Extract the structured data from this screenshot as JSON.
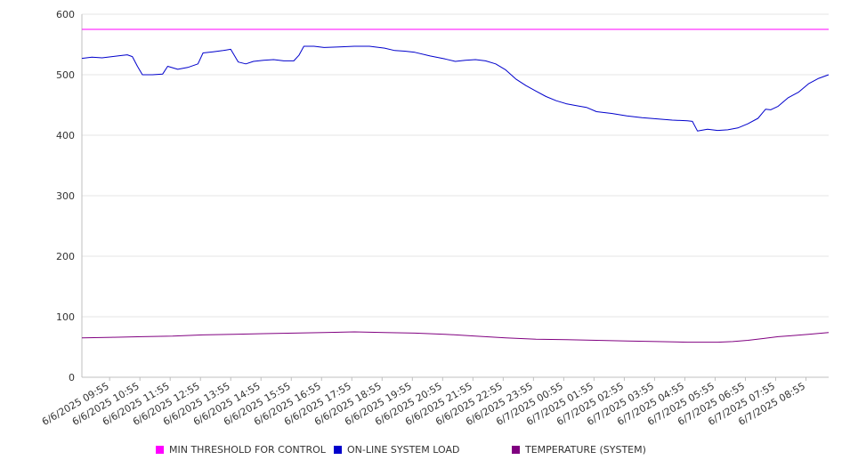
{
  "chart_data": {
    "type": "line",
    "title": "",
    "xlabel": "",
    "ylabel": "",
    "ylim": [
      0,
      600
    ],
    "yticks": [
      0,
      100,
      200,
      300,
      400,
      500,
      600
    ],
    "grid": true,
    "legend_position": "bottom",
    "x_tick_labels": [
      "6/6/2025 09:55",
      "6/6/2025 10:55",
      "6/6/2025 11:55",
      "6/6/2025 12:55",
      "6/6/2025 13:55",
      "6/6/2025 14:55",
      "6/6/2025 15:55",
      "6/6/2025 16:55",
      "6/6/2025 17:55",
      "6/6/2025 18:55",
      "6/6/2025 19:55",
      "6/6/2025 20:55",
      "6/6/2025 21:55",
      "6/6/2025 22:55",
      "6/6/2025 23:55",
      "6/7/2025 00:55",
      "6/7/2025 01:55",
      "6/7/2025 02:55",
      "6/7/2025 03:55",
      "6/7/2025 04:55",
      "6/7/2025 05:55",
      "6/7/2025 06:55",
      "6/7/2025 07:55",
      "6/7/2025 08:55"
    ],
    "x_range": [
      "6/6/2025 09:00",
      "6/7/2025 09:40"
    ],
    "series": [
      {
        "name": "MIN THRESHOLD FOR CONTROL",
        "color": "#ff00ff",
        "points": [
          [
            "6/6/2025 09:00",
            575
          ],
          [
            "6/7/2025 09:40",
            575
          ]
        ]
      },
      {
        "name": "ON-LINE SYSTEM LOAD",
        "color": "#0000cc",
        "points": [
          [
            "6/6/2025 09:00",
            527
          ],
          [
            "6/6/2025 09:20",
            529
          ],
          [
            "6/6/2025 09:40",
            528
          ],
          [
            "6/6/2025 10:00",
            530
          ],
          [
            "6/6/2025 10:20",
            532
          ],
          [
            "6/6/2025 10:30",
            533
          ],
          [
            "6/6/2025 10:40",
            530
          ],
          [
            "6/6/2025 10:50",
            514
          ],
          [
            "6/6/2025 11:00",
            500
          ],
          [
            "6/6/2025 11:20",
            500
          ],
          [
            "6/6/2025 11:40",
            501
          ],
          [
            "6/6/2025 11:50",
            514
          ],
          [
            "6/6/2025 12:10",
            509
          ],
          [
            "6/6/2025 12:30",
            512
          ],
          [
            "6/6/2025 12:50",
            518
          ],
          [
            "6/6/2025 13:00",
            536
          ],
          [
            "6/6/2025 13:20",
            538
          ],
          [
            "6/6/2025 13:40",
            540
          ],
          [
            "6/6/2025 13:55",
            542
          ],
          [
            "6/6/2025 14:10",
            521
          ],
          [
            "6/6/2025 14:25",
            518
          ],
          [
            "6/6/2025 14:40",
            522
          ],
          [
            "6/6/2025 15:00",
            524
          ],
          [
            "6/6/2025 15:20",
            525
          ],
          [
            "6/6/2025 15:40",
            523
          ],
          [
            "6/6/2025 16:00",
            523
          ],
          [
            "6/6/2025 16:10",
            532
          ],
          [
            "6/6/2025 16:20",
            547
          ],
          [
            "6/6/2025 16:40",
            547
          ],
          [
            "6/6/2025 17:00",
            545
          ],
          [
            "6/6/2025 17:30",
            546
          ],
          [
            "6/6/2025 18:00",
            547
          ],
          [
            "6/6/2025 18:30",
            547
          ],
          [
            "6/6/2025 19:00",
            544
          ],
          [
            "6/6/2025 19:20",
            540
          ],
          [
            "6/6/2025 19:40",
            539
          ],
          [
            "6/6/2025 20:00",
            537
          ],
          [
            "6/6/2025 20:30",
            531
          ],
          [
            "6/6/2025 21:00",
            526
          ],
          [
            "6/6/2025 21:20",
            522
          ],
          [
            "6/6/2025 21:40",
            524
          ],
          [
            "6/6/2025 22:00",
            525
          ],
          [
            "6/6/2025 22:20",
            523
          ],
          [
            "6/6/2025 22:40",
            518
          ],
          [
            "6/6/2025 23:00",
            508
          ],
          [
            "6/6/2025 23:20",
            493
          ],
          [
            "6/6/2025 23:40",
            482
          ],
          [
            "6/7/2025 00:00",
            473
          ],
          [
            "6/7/2025 00:20",
            464
          ],
          [
            "6/7/2025 00:40",
            457
          ],
          [
            "6/7/2025 01:00",
            452
          ],
          [
            "6/7/2025 01:20",
            449
          ],
          [
            "6/7/2025 01:40",
            446
          ],
          [
            "6/7/2025 02:00",
            439
          ],
          [
            "6/7/2025 02:30",
            436
          ],
          [
            "6/7/2025 03:00",
            432
          ],
          [
            "6/7/2025 03:30",
            429
          ],
          [
            "6/7/2025 04:00",
            427
          ],
          [
            "6/7/2025 04:30",
            425
          ],
          [
            "6/7/2025 05:00",
            424
          ],
          [
            "6/7/2025 05:10",
            423
          ],
          [
            "6/7/2025 05:20",
            407
          ],
          [
            "6/7/2025 05:40",
            410
          ],
          [
            "6/7/2025 06:00",
            408
          ],
          [
            "6/7/2025 06:20",
            409
          ],
          [
            "6/7/2025 06:40",
            412
          ],
          [
            "6/7/2025 07:00",
            419
          ],
          [
            "6/7/2025 07:20",
            428
          ],
          [
            "6/7/2025 07:35",
            443
          ],
          [
            "6/7/2025 07:45",
            442
          ],
          [
            "6/7/2025 08:00",
            448
          ],
          [
            "6/7/2025 08:20",
            462
          ],
          [
            "6/7/2025 08:40",
            471
          ],
          [
            "6/7/2025 09:00",
            485
          ],
          [
            "6/7/2025 09:20",
            494
          ],
          [
            "6/7/2025 09:40",
            500
          ]
        ]
      },
      {
        "name": "TEMPERATURE (SYSTEM)",
        "color": "#800080",
        "points": [
          [
            "6/6/2025 09:00",
            65
          ],
          [
            "6/6/2025 10:00",
            66
          ],
          [
            "6/6/2025 11:00",
            67
          ],
          [
            "6/6/2025 12:00",
            68
          ],
          [
            "6/6/2025 13:00",
            70
          ],
          [
            "6/6/2025 14:00",
            71
          ],
          [
            "6/6/2025 15:00",
            72
          ],
          [
            "6/6/2025 16:00",
            73
          ],
          [
            "6/6/2025 17:00",
            74
          ],
          [
            "6/6/2025 18:00",
            75
          ],
          [
            "6/6/2025 19:00",
            74
          ],
          [
            "6/6/2025 20:00",
            73
          ],
          [
            "6/6/2025 21:00",
            71
          ],
          [
            "6/6/2025 22:00",
            68
          ],
          [
            "6/6/2025 23:00",
            65
          ],
          [
            "6/7/2025 00:00",
            63
          ],
          [
            "6/7/2025 01:00",
            62
          ],
          [
            "6/7/2025 02:00",
            61
          ],
          [
            "6/7/2025 03:00",
            60
          ],
          [
            "6/7/2025 04:00",
            59
          ],
          [
            "6/7/2025 05:00",
            58
          ],
          [
            "6/7/2025 06:00",
            58
          ],
          [
            "6/7/2025 06:30",
            59
          ],
          [
            "6/7/2025 07:00",
            61
          ],
          [
            "6/7/2025 07:30",
            64
          ],
          [
            "6/7/2025 08:00",
            67
          ],
          [
            "6/7/2025 08:30",
            69
          ],
          [
            "6/7/2025 09:00",
            71
          ],
          [
            "6/7/2025 09:40",
            74
          ]
        ]
      }
    ]
  }
}
